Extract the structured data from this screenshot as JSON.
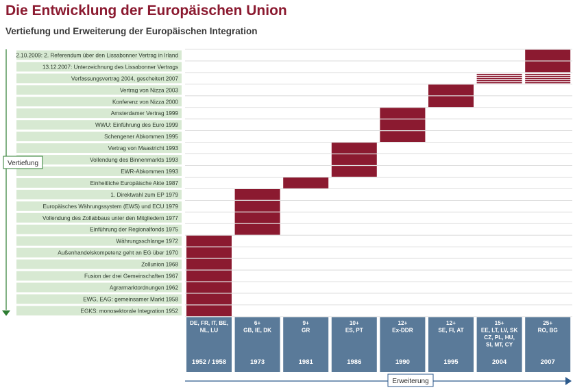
{
  "title": "Die Entwicklung der Europäischen Union",
  "subtitle": "Vertiefung und Erweiterung der Europäischen Integration",
  "vertical_axis_label": "Vertiefung",
  "horizontal_axis_label": "Erweiterung",
  "colors": {
    "title": "#8b1a30",
    "bar": "#8b1a30",
    "label_bg": "#d7e9d2",
    "column_bg": "#5a7a99",
    "vertical_arrow": "#2e7d32",
    "horizontal_arrow": "#2c5a8c"
  },
  "chart_data": {
    "type": "heatmap",
    "rows": [
      "2.10.2009: 2. Referendum über den Lissabonner Vertrag in Irland",
      "13.12.2007: Unterzeichnung des Lissabonner Vertrags",
      "Verfassungsvertrag 2004, gescheitert 2007",
      "Vertrag von Nizza 2003",
      "Konferenz von Nizza 2000",
      "Amsterdamer Vertrag 1999",
      "WWU: Einführung des Euro 1999",
      "Schengener Abkommen 1995",
      "Vertrag von Maastricht 1993",
      "Vollendung des Binnenmarkts 1993",
      "EWR-Abkommen 1993",
      "Einheitliche Europäische Akte 1987",
      "1. Direktwahl zum EP 1979",
      "Europäisches Währungssystem (EWS) und ECU 1979",
      "Vollendung des Zollabbaus unter den Mitgliedern 1977",
      "Einführung der Regionalfonds 1975",
      "Währungsschlange 1972",
      "Außenhandelskompetenz geht an EG über 1970",
      "Zollunion 1968",
      "Fusion der drei Gemeinschaften 1967",
      "Agrarmarktordnungen 1962",
      "EWG, EAG: gemeinsamer Markt 1958",
      "EGKS: monosektorale Integration 1952"
    ],
    "columns": [
      {
        "members": "DE, FR, IT, BE,\nNL, LU",
        "year": "1952 / 1958"
      },
      {
        "members": "6+\nGB, IE, DK",
        "year": "1973"
      },
      {
        "members": "9+\nGR",
        "year": "1981"
      },
      {
        "members": "10+\nES, PT",
        "year": "1986"
      },
      {
        "members": "12+\nEx-DDR",
        "year": "1990"
      },
      {
        "members": "12+\nSE, FI, AT",
        "year": "1995"
      },
      {
        "members": "15+\nEE, LT, LV, SK\nCZ, PL, HU,\nSI, MT, CY",
        "year": "2004"
      },
      {
        "members": "25+\nRO, BG",
        "year": "2007"
      }
    ],
    "blocks": [
      {
        "column": 0,
        "rows": [
          16,
          17,
          18,
          19,
          20,
          21,
          22
        ],
        "style": "solid"
      },
      {
        "column": 1,
        "rows": [
          12,
          13,
          14,
          15
        ],
        "style": "solid"
      },
      {
        "column": 2,
        "rows": [
          11
        ],
        "style": "solid"
      },
      {
        "column": 3,
        "rows": [
          8,
          9,
          10
        ],
        "style": "solid"
      },
      {
        "column": 4,
        "rows": [
          5,
          6,
          7
        ],
        "style": "solid"
      },
      {
        "column": 5,
        "rows": [
          3,
          4
        ],
        "style": "solid"
      },
      {
        "column": 6,
        "rows": [
          2
        ],
        "style": "striped"
      },
      {
        "column": 7,
        "rows": [
          0,
          1
        ],
        "style": "solid"
      },
      {
        "column": 7,
        "rows": [
          2
        ],
        "style": "striped"
      }
    ]
  }
}
